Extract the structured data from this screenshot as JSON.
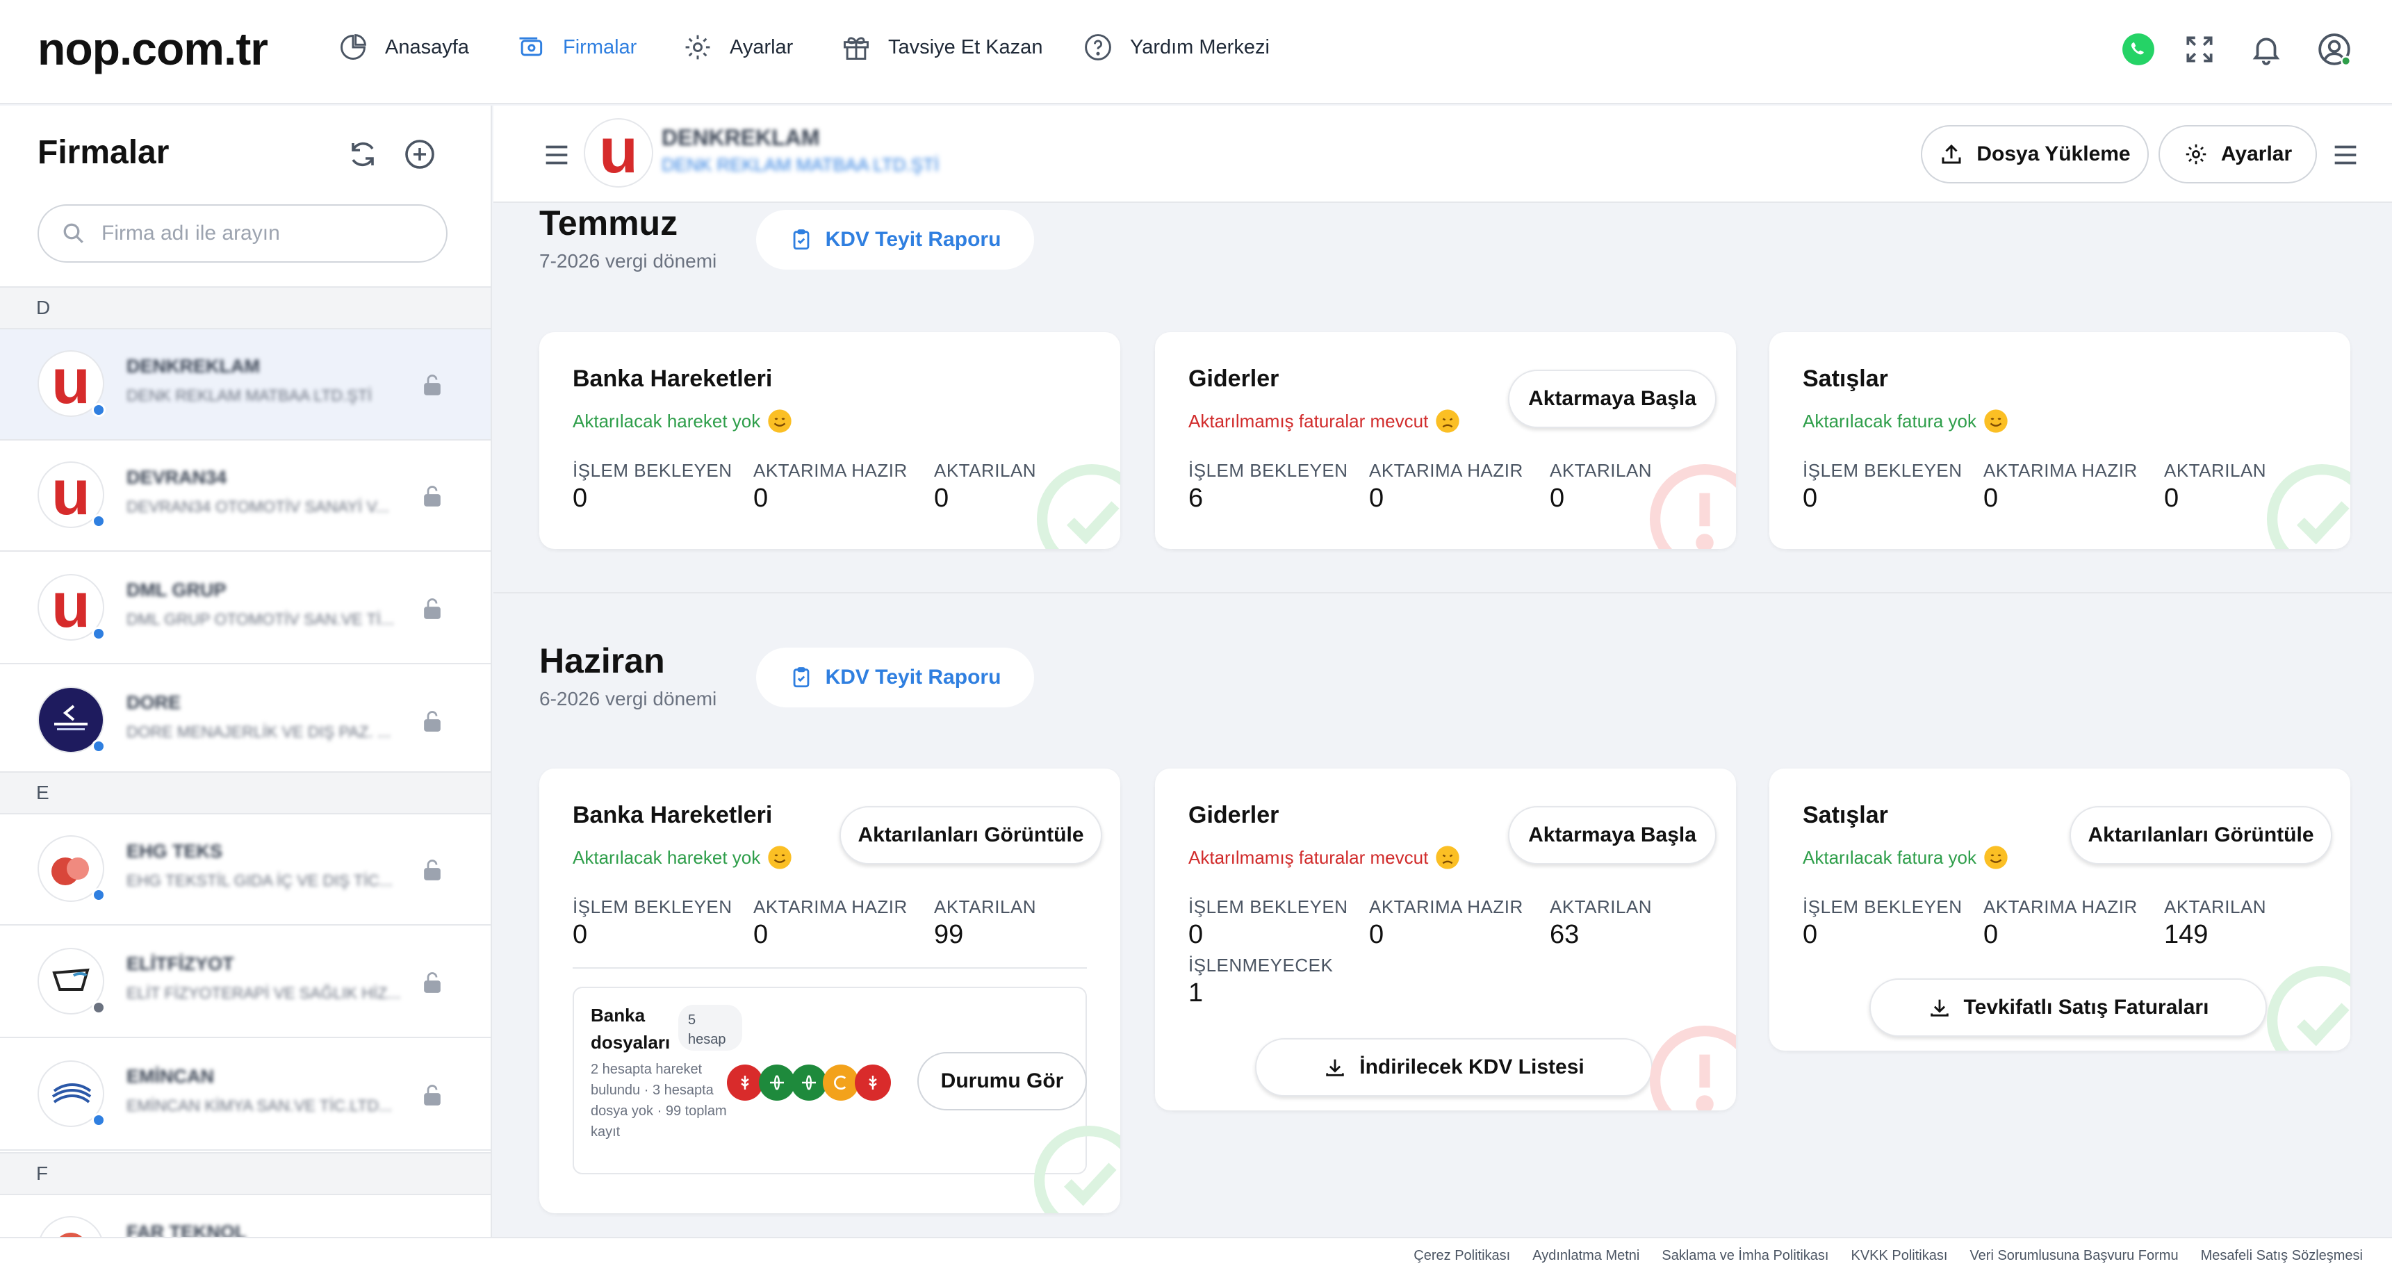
{
  "brand": "nop.com.tr",
  "nav": {
    "home": "Anasayfa",
    "firms": "Firmalar",
    "settings": "Ayarlar",
    "referral": "Tavsiye Et Kazan",
    "help": "Yardım Merkezi"
  },
  "sidebar": {
    "title": "Firmalar",
    "search_placeholder": "Firma adı ile arayın",
    "letters": [
      "D",
      "E",
      "F"
    ],
    "firms": [
      {
        "name": "DENKREKLAM",
        "sub": "DENK REKLAM MATBAA LTD.ŞTİ",
        "status_color": "#2f7fe0"
      },
      {
        "name": "DEVRAN34",
        "sub": "DEVRAN34 OTOMOTİV SANAYİ V...",
        "status_color": "#2f7fe0"
      },
      {
        "name": "DML GRUP",
        "sub": "DML GRUP OTOMOTİV SAN.VE Tİ...",
        "status_color": "#2f7fe0"
      },
      {
        "name": "DORE",
        "sub": "DORE MENAJERLİK VE DIŞ PAZ. ...",
        "status_color": "#2f7fe0"
      },
      {
        "name": "EHG TEKS",
        "sub": "EHG TEKSTİL GIDA İÇ VE DIŞ TİC...",
        "status_color": "#2f7fe0"
      },
      {
        "name": "ELİTFİZYOT",
        "sub": "ELİT FİZYOTERAPİ VE SAĞLIK HİZ...",
        "status_color": "#6b7280"
      },
      {
        "name": "EMİNCAN",
        "sub": "EMİNCAN KİMYA SAN.VE TİC.LTD...",
        "status_color": "#2f7fe0"
      },
      {
        "name": "FAR TEKNOL",
        "sub": "",
        "status_color": "#2f7fe0"
      }
    ]
  },
  "header": {
    "company_name": "DENKREKLAM",
    "company_sub": "DENK REKLAM MATBAA LTD.ŞTİ",
    "upload_label": "Dosya Yükleme",
    "settings_label": "Ayarlar"
  },
  "labels": {
    "waiting": "İŞLEM BEKLEYEN",
    "ready": "AKTARIMA HAZIR",
    "transferred": "AKTARILAN",
    "not_processed": "İŞLENMEYECEK",
    "kdv_report": "KDV Teyit Raporu",
    "bank": "Banka Hareketleri",
    "expenses": "Giderler",
    "sales": "Satışlar",
    "start_transfer": "Aktarmaya Başla",
    "view_transferred": "Aktarılanları Görüntüle",
    "no_movement": "Aktarılacak hareket yok",
    "unsent_invoices": "Aktarılmamış faturalar mevcut",
    "no_invoice": "Aktarılacak fatura yok",
    "kdv_list": "İndirilecek KDV Listesi",
    "tevkifat": "Tevkifatlı Satış Faturaları"
  },
  "july": {
    "month": "Temmuz",
    "period": "7-2026 vergi dönemi",
    "bank": {
      "waiting": "0",
      "ready": "0",
      "transferred": "0"
    },
    "expenses": {
      "waiting": "6",
      "ready": "0",
      "transferred": "0"
    },
    "sales": {
      "waiting": "0",
      "ready": "0",
      "transferred": "0"
    }
  },
  "june": {
    "month": "Haziran",
    "period": "6-2026 vergi dönemi",
    "bank": {
      "waiting": "0",
      "ready": "0",
      "transferred": "99"
    },
    "expenses": {
      "waiting": "0",
      "ready": "0",
      "transferred": "63",
      "not_processed": "1"
    },
    "sales": {
      "waiting": "0",
      "ready": "0",
      "transferred": "149"
    },
    "bank_files": {
      "title": "Banka dosyaları",
      "badge": "5 hesap",
      "desc": "2 hesapta hareket bulundu · 3 hesapta dosya yok · 99 toplam kayıt",
      "button": "Durumu Gör"
    }
  },
  "footer": [
    "Çerez Politikası",
    "Aydınlatma Metni",
    "Saklama ve İmha Politikası",
    "KVKK Politikası",
    "Veri Sorumlusuna Başvuru Formu",
    "Mesafeli Satış Sözleşmesi"
  ],
  "colors": {
    "accent": "#2f7fe0",
    "ok": "#2e9e4a",
    "bad": "#d12b2b"
  }
}
